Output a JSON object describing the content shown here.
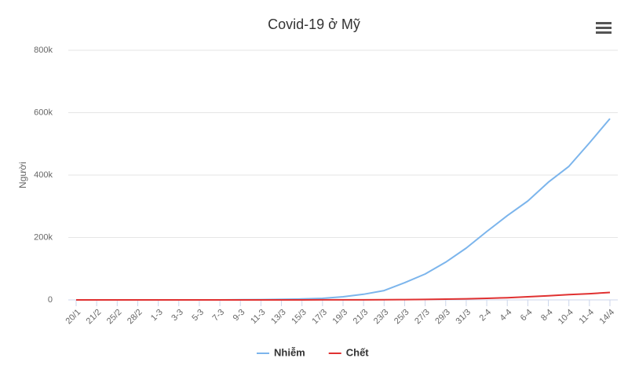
{
  "chart_data": {
    "type": "line",
    "title": "Covid-19 ở Mỹ",
    "y_label": "Người",
    "categories": [
      "20/1",
      "21/2",
      "25/2",
      "28/2",
      "1-3",
      "3-3",
      "5-3",
      "7-3",
      "9-3",
      "11-3",
      "13/3",
      "15/3",
      "17/3",
      "19/3",
      "21/3",
      "23/3",
      "25/3",
      "27/3",
      "29/3",
      "31/3",
      "2-4",
      "4-4",
      "6-4",
      "8-4",
      "10-4",
      "11-4",
      "14/4"
    ],
    "series": [
      {
        "name": "Nhiễm",
        "color": "#7cb5ec",
        "values": [
          0,
          0,
          0,
          0,
          0,
          0,
          0,
          0,
          500,
          1000,
          2000,
          3000,
          5000,
          10000,
          18000,
          30000,
          55000,
          83000,
          121000,
          166000,
          219000,
          270000,
          317000,
          377000,
          428000,
          503000,
          581000
        ]
      },
      {
        "name": "Chết",
        "color": "#e03131",
        "values": [
          0,
          0,
          0,
          0,
          0,
          0,
          0,
          0,
          0,
          0,
          50,
          100,
          150,
          200,
          300,
          500,
          1000,
          1500,
          2500,
          3500,
          5000,
          7000,
          10000,
          13000,
          17000,
          20000,
          24000
        ]
      }
    ],
    "ylim": [
      0,
      800000
    ],
    "yticks": [
      0,
      {
        "value": 200000,
        "label": "200k"
      },
      {
        "value": 400000,
        "label": "400k"
      },
      {
        "value": 600000,
        "label": "600k"
      },
      {
        "value": 800000,
        "label": "800k"
      }
    ],
    "grid": true,
    "legend": "bottom"
  }
}
